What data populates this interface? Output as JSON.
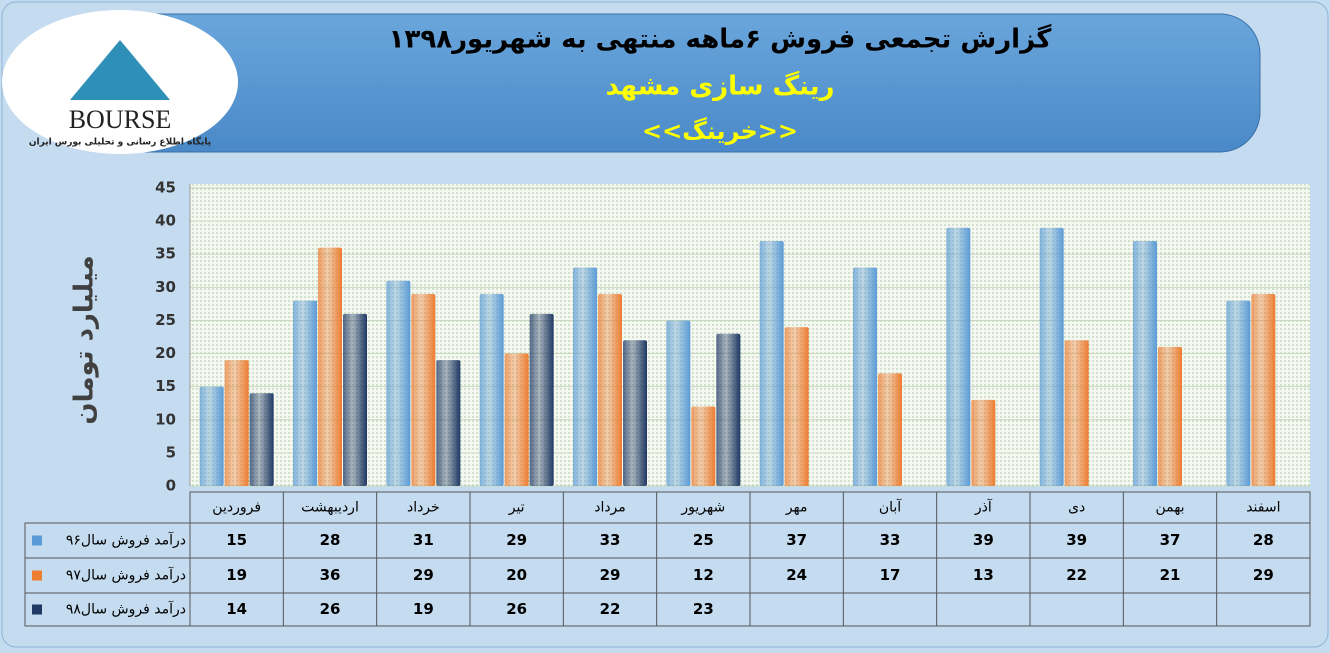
{
  "logo": {
    "name": "BOURSE",
    "tagline": "پایگاه اطلاع رسانی و تحلیلی بورس ایران"
  },
  "chart_data": {
    "type": "bar",
    "title": "گزارش تجمعی فروش ۶ماهه منتهی به شهریور۱۳۹۸",
    "subtitle": "رینگ سازی مشهد",
    "subtitle2": "<<خرینگ>>",
    "y_label": "میلیارد تومان",
    "categories": [
      "فروردین",
      "اردیبهشت",
      "خرداد",
      "تیر",
      "مرداد",
      "شهریور",
      "مهر",
      "آبان",
      "آذر",
      "دی",
      "بهمن",
      "اسفند"
    ],
    "series": [
      {
        "name": "درآمد فروش سال۹۶",
        "color": "#5b9bd5",
        "values": [
          15,
          28,
          31,
          29,
          33,
          25,
          37,
          33,
          39,
          39,
          37,
          28
        ]
      },
      {
        "name": "درآمد فروش سال۹۷",
        "color": "#ed7d31",
        "values": [
          19,
          36,
          29,
          20,
          29,
          12,
          24,
          17,
          13,
          22,
          21,
          29
        ]
      },
      {
        "name": "درآمد فروش سال۹۸",
        "color": "#1f3864",
        "values": [
          14,
          26,
          19,
          26,
          22,
          23,
          null,
          null,
          null,
          null,
          null,
          null
        ]
      }
    ],
    "ylim": [
      0,
      45
    ],
    "yticks": [
      0,
      5,
      10,
      15,
      20,
      25,
      30,
      35,
      40,
      45
    ],
    "grid": true
  }
}
